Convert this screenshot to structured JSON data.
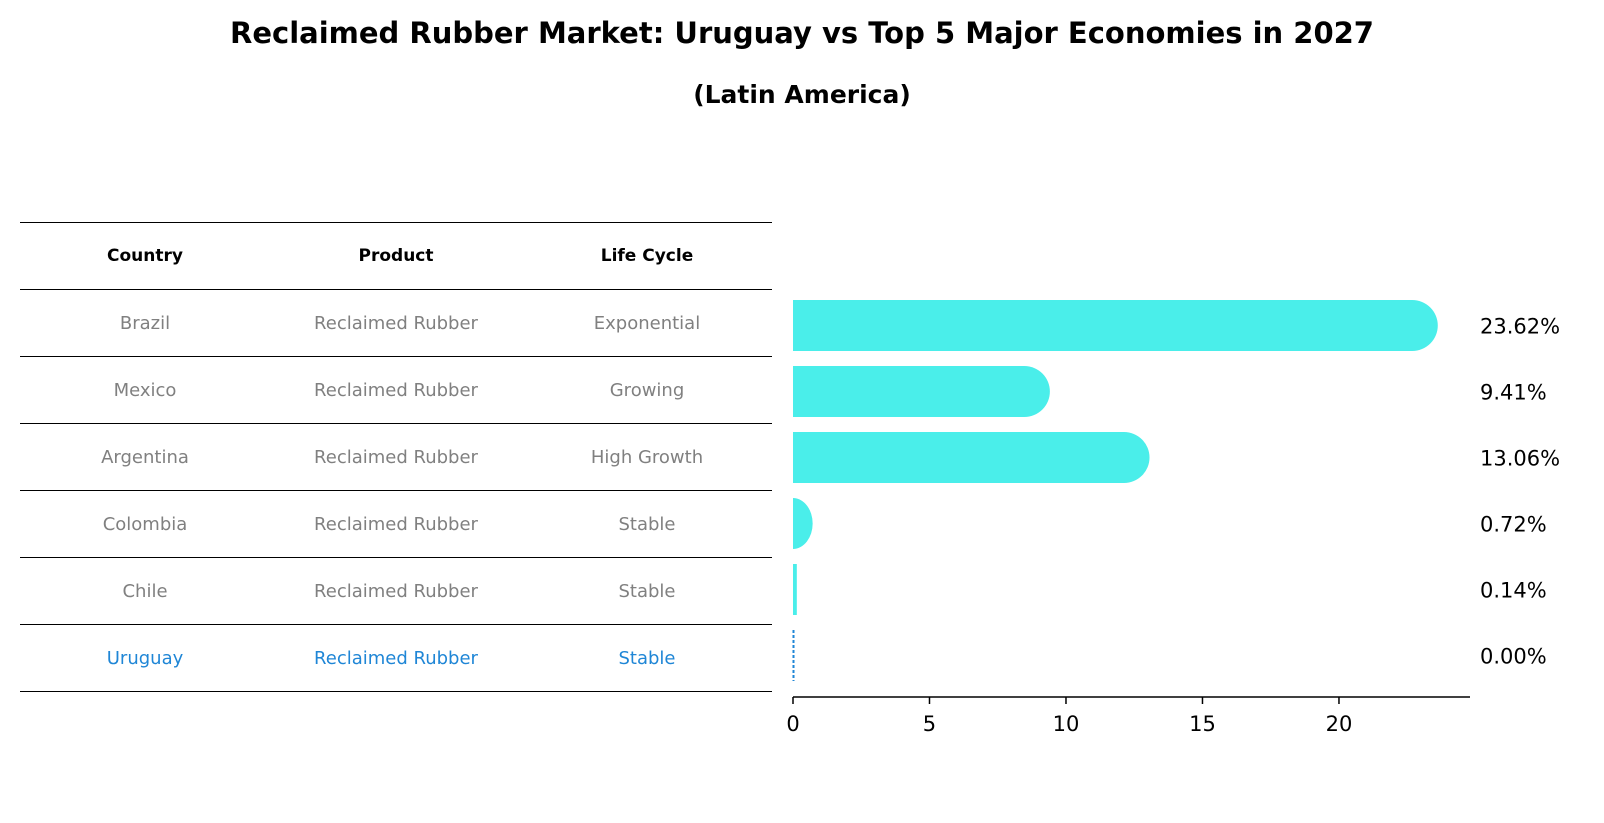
{
  "header": {
    "title": "Reclaimed Rubber Market: Uruguay vs Top 5 Major Economies in 2027",
    "subtitle": "(Latin America)"
  },
  "table": {
    "columns": [
      "Country",
      "Product",
      "Life Cycle"
    ],
    "rows": [
      {
        "country": "Brazil",
        "product": "Reclaimed Rubber",
        "life_cycle": "Exponential"
      },
      {
        "country": "Mexico",
        "product": "Reclaimed Rubber",
        "life_cycle": "Growing"
      },
      {
        "country": "Argentina",
        "product": "Reclaimed Rubber",
        "life_cycle": "High Growth"
      },
      {
        "country": "Colombia",
        "product": "Reclaimed Rubber",
        "life_cycle": "Stable"
      },
      {
        "country": "Chile",
        "product": "Reclaimed Rubber",
        "life_cycle": "Stable"
      },
      {
        "country": "Uruguay",
        "product": "Reclaimed Rubber",
        "life_cycle": "Stable"
      }
    ],
    "highlight_row": "Uruguay"
  },
  "colors": {
    "bar": "#4aeeea",
    "highlight": "#1f86d6",
    "muted_text": "#808080"
  },
  "chart_data": {
    "type": "bar",
    "orientation": "horizontal",
    "categories": [
      "Brazil",
      "Mexico",
      "Argentina",
      "Colombia",
      "Chile",
      "Uruguay"
    ],
    "values": [
      23.62,
      9.41,
      13.06,
      0.72,
      0.14,
      0.0
    ],
    "value_labels": [
      "23.62%",
      "9.41%",
      "13.06%",
      "0.72%",
      "0.14%",
      "0.00%"
    ],
    "xlim": [
      0,
      24.8
    ],
    "xticks": [
      0,
      5,
      10,
      15,
      20
    ],
    "grid": false
  }
}
